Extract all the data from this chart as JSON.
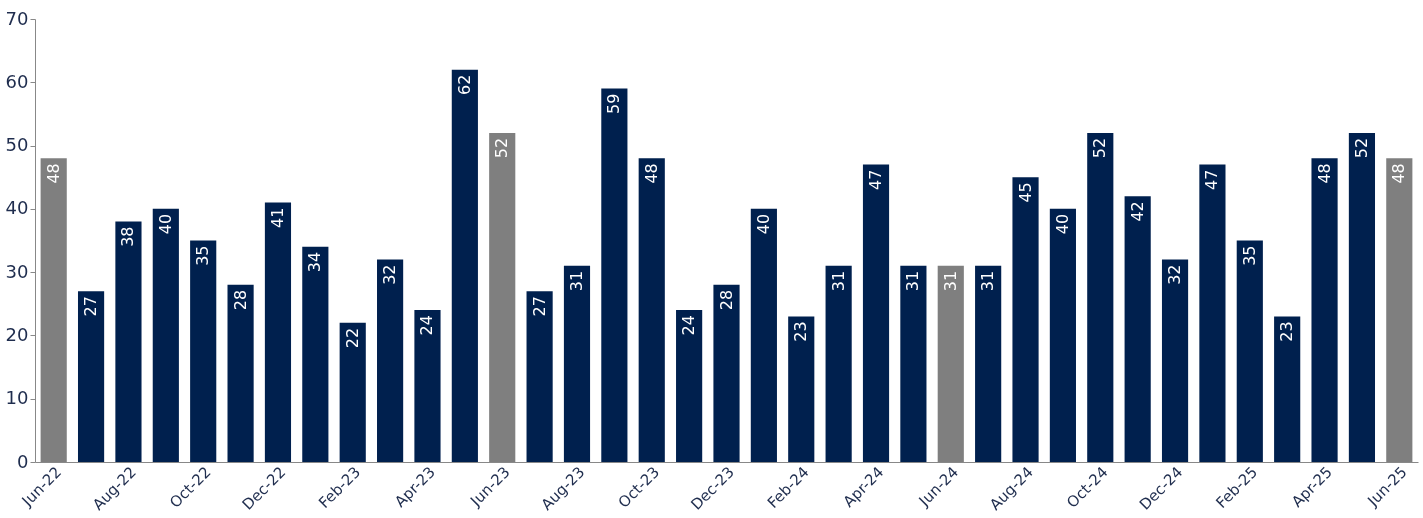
{
  "chart_data": {
    "type": "bar",
    "categories": [
      "Jun-22",
      null,
      "Aug-22",
      null,
      "Oct-22",
      null,
      "Dec-22",
      null,
      "Feb-23",
      null,
      "Apr-23",
      null,
      "Jun-23",
      null,
      "Aug-23",
      null,
      "Oct-23",
      null,
      "Dec-23",
      null,
      "Feb-24",
      null,
      "Apr-24",
      null,
      "Jun-24",
      null,
      "Aug-24",
      null,
      "Oct-24",
      null,
      "Dec-24",
      null,
      "Feb-25",
      null,
      "Apr-25",
      null,
      "Jun-25"
    ],
    "values": [
      48,
      27,
      38,
      40,
      35,
      28,
      41,
      34,
      22,
      32,
      24,
      62,
      52,
      27,
      31,
      59,
      48,
      24,
      28,
      40,
      23,
      31,
      47,
      31,
      31,
      31,
      45,
      40,
      52,
      42,
      32,
      47,
      35,
      23,
      48,
      52,
      48
    ],
    "colors": [
      "#7f7f7f",
      "#00204e",
      "#00204e",
      "#00204e",
      "#00204e",
      "#00204e",
      "#00204e",
      "#00204e",
      "#00204e",
      "#00204e",
      "#00204e",
      "#00204e",
      "#7f7f7f",
      "#00204e",
      "#00204e",
      "#00204e",
      "#00204e",
      "#00204e",
      "#00204e",
      "#00204e",
      "#00204e",
      "#00204e",
      "#00204e",
      "#00204e",
      "#7f7f7f",
      "#00204e",
      "#00204e",
      "#00204e",
      "#00204e",
      "#00204e",
      "#00204e",
      "#00204e",
      "#00204e",
      "#00204e",
      "#00204e",
      "#00204e",
      "#7f7f7f"
    ],
    "ylim": [
      0,
      70
    ],
    "yticks": [
      0,
      10,
      20,
      30,
      40,
      50,
      60,
      70
    ],
    "data_labels": true,
    "grid": false
  }
}
